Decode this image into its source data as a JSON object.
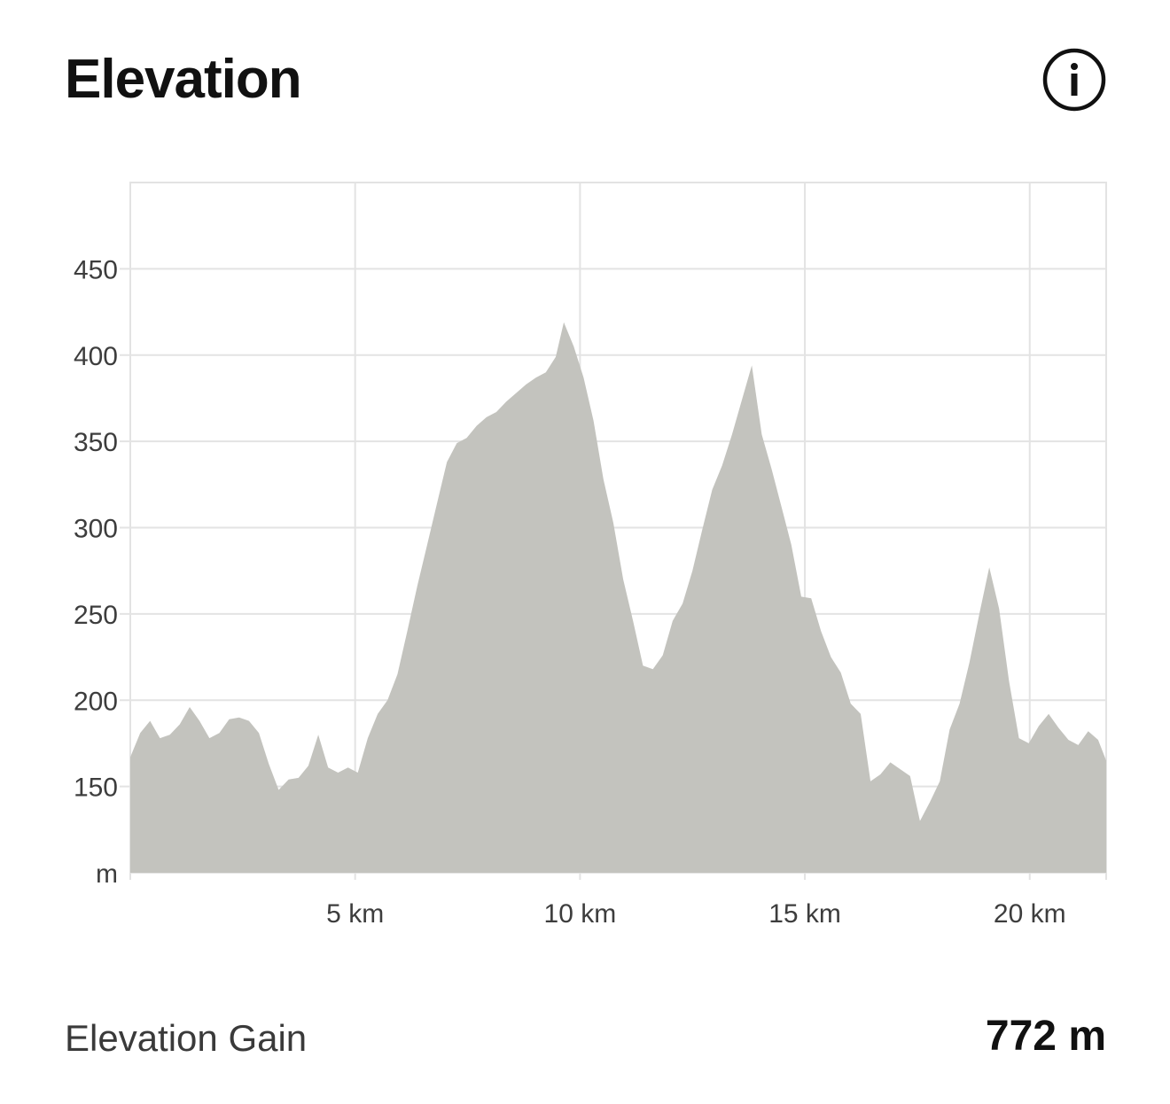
{
  "header": {
    "title": "Elevation",
    "info_icon": "info-icon"
  },
  "summary": {
    "label": "Elevation Gain",
    "value": "772 m"
  },
  "colors": {
    "area": "#c3c3be",
    "grid": "#e3e3e3",
    "text": "#3d3d3d"
  },
  "chart_data": {
    "type": "area",
    "title": "",
    "xlabel": "",
    "ylabel": "m",
    "xlim": [
      0,
      21.7
    ],
    "ylim": [
      100,
      500
    ],
    "grid": true,
    "y_ticks": [
      {
        "value": 450,
        "label": "450"
      },
      {
        "value": 400,
        "label": "400"
      },
      {
        "value": 350,
        "label": "350"
      },
      {
        "value": 300,
        "label": "300"
      },
      {
        "value": 250,
        "label": "250"
      },
      {
        "value": 200,
        "label": "200"
      },
      {
        "value": 150,
        "label": "150"
      },
      {
        "value": 100,
        "label": "m"
      }
    ],
    "x_ticks": [
      {
        "value": 5,
        "label": "5 km"
      },
      {
        "value": 10,
        "label": "10 km"
      },
      {
        "value": 15,
        "label": "15 km"
      },
      {
        "value": 20,
        "label": "20 km"
      }
    ],
    "series": [
      {
        "x": [
          0,
          0.22,
          0.44,
          0.66,
          0.88,
          1.1,
          1.32,
          1.54,
          1.76,
          1.98,
          2.2,
          2.42,
          2.64,
          2.86,
          3.08,
          3.3,
          3.52,
          3.74,
          3.96,
          4.18,
          4.4,
          4.62,
          4.84,
          5.06,
          5.28,
          5.5,
          5.72,
          5.94,
          6.16,
          6.38,
          6.6,
          6.82,
          7.04,
          7.26,
          7.48,
          7.7,
          7.92,
          8.14,
          8.36,
          8.58,
          8.8,
          9.02,
          9.24,
          9.46,
          9.64,
          9.86,
          10.08,
          10.3,
          10.52,
          10.74,
          10.96,
          11.18,
          11.4,
          11.62,
          11.84,
          12.06,
          12.28,
          12.5,
          12.72,
          12.94,
          13.16,
          13.38,
          13.6,
          13.82,
          14.04,
          14.26,
          14.48,
          14.7,
          14.92,
          15.14,
          15.36,
          15.58,
          15.8,
          16.02,
          16.24,
          16.46,
          16.68,
          16.9,
          17.12,
          17.34,
          17.56,
          17.78,
          18.0,
          18.22,
          18.44,
          18.66,
          18.88,
          19.1,
          19.32,
          19.54,
          19.76,
          19.98,
          20.2,
          20.42,
          20.64,
          20.86,
          21.08,
          21.3,
          21.52,
          21.7
        ],
        "values": [
          167,
          181,
          188,
          178,
          180,
          186,
          196,
          188,
          178,
          181,
          189,
          190,
          188,
          181,
          163,
          148,
          154,
          155,
          162,
          180,
          161,
          158,
          161,
          158,
          178,
          192,
          200,
          215,
          240,
          266,
          290,
          314,
          338,
          349,
          352,
          359,
          364,
          367,
          373,
          378,
          383,
          387,
          390,
          399,
          419,
          405,
          387,
          362,
          328,
          303,
          270,
          246,
          220,
          218,
          226,
          246,
          256,
          275,
          299,
          322,
          336,
          354,
          374,
          394,
          354,
          334,
          312,
          290,
          260,
          259,
          240,
          225,
          216,
          198,
          192,
          153,
          157,
          164,
          160,
          156,
          130,
          141,
          153,
          183,
          198,
          222,
          250,
          277,
          253,
          211,
          178,
          175,
          185,
          192,
          184,
          177,
          174,
          182,
          177,
          165
        ]
      }
    ]
  }
}
